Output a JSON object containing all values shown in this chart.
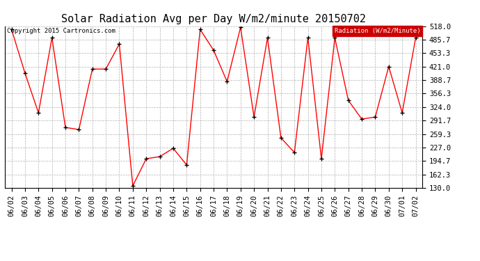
{
  "title": "Solar Radiation Avg per Day W/m2/minute 20150702",
  "copyright": "Copyright 2015 Cartronics.com",
  "legend_label": "Radiation (W/m2/Minute)",
  "dates": [
    "06/02",
    "06/03",
    "06/04",
    "06/05",
    "06/06",
    "06/07",
    "06/08",
    "06/09",
    "06/10",
    "06/11",
    "06/12",
    "06/13",
    "06/14",
    "06/15",
    "06/16",
    "06/17",
    "06/18",
    "06/19",
    "06/20",
    "06/21",
    "06/22",
    "06/23",
    "06/24",
    "06/25",
    "06/26",
    "06/27",
    "06/28",
    "06/29",
    "06/30",
    "07/01",
    "07/02"
  ],
  "values": [
    510,
    405,
    310,
    490,
    275,
    270,
    415,
    415,
    475,
    135,
    200,
    205,
    225,
    185,
    510,
    460,
    385,
    515,
    300,
    490,
    250,
    215,
    490,
    200,
    490,
    340,
    295,
    300,
    421,
    310,
    490
  ],
  "ylim": [
    130.0,
    518.0
  ],
  "yticks": [
    130.0,
    162.3,
    194.7,
    227.0,
    259.3,
    291.7,
    324.0,
    356.3,
    388.7,
    421.0,
    453.3,
    485.7,
    518.0
  ],
  "line_color": "red",
  "marker_color": "black",
  "bg_color": "#ffffff",
  "plot_bg_color": "#ffffff",
  "grid_color": "#b0b0b0",
  "title_fontsize": 11,
  "tick_fontsize": 7.5,
  "legend_bg": "#cc0000",
  "legend_fg": "#ffffff"
}
